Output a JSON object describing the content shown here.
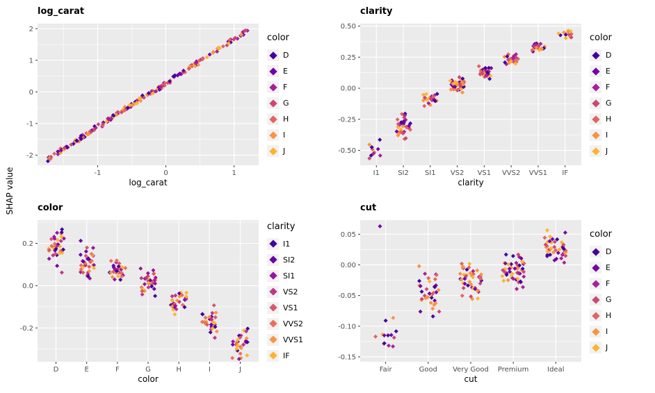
{
  "page": {
    "background": "#FFFFFF",
    "shared_ylabel": "SHAP value"
  },
  "palettes": {
    "color7": [
      "#41049D",
      "#7301A8",
      "#A62098",
      "#CC4778",
      "#E16462",
      "#F89441",
      "#FDB32F"
    ],
    "clarity8": [
      "#41049D",
      "#6A00A8",
      "#97139F",
      "#BD3786",
      "#D8576B",
      "#E97158",
      "#F89540",
      "#FDB32F"
    ]
  },
  "style": {
    "panel_bg": "#EBEBEB",
    "grid_color": "#FFFFFF",
    "tick_label_color": "#4D4D4D",
    "axis_title_color": "#000000",
    "tick_mark_color": "#333333",
    "legend_key_bg": "#F2F2F2"
  },
  "chart_data": [
    {
      "type": "scatter",
      "title": "log_carat",
      "xlabel": "log_carat",
      "ylabel": "SHAP value",
      "x_type": "continuous",
      "x_ticks": [
        -1,
        0,
        1
      ],
      "x_tick_labels": [
        "-1",
        "0",
        "1"
      ],
      "xlim": [
        -1.88,
        1.36
      ],
      "y_ticks": [
        -2,
        -1,
        0,
        1,
        2
      ],
      "y_tick_labels": [
        "-2",
        "-1",
        "0",
        "1",
        "2"
      ],
      "ylim": [
        -2.32,
        2.16
      ],
      "grid": true,
      "legend_position": "right",
      "legend_title": "color",
      "legend_labels": [
        "D",
        "E",
        "F",
        "G",
        "H",
        "I",
        "J"
      ],
      "palette_key": "color7",
      "trend": {
        "kind": "linear",
        "slope": 1.39,
        "intercept": 0.28,
        "x_range": [
          -1.73,
          1.21
        ],
        "noise": 0.035,
        "n": 200
      },
      "seed": 11
    },
    {
      "type": "scatter",
      "title": "clarity",
      "xlabel": "clarity",
      "ylabel": "SHAP value",
      "x_type": "categorical",
      "categories": [
        "I1",
        "SI2",
        "SI1",
        "VS2",
        "VS1",
        "VVS2",
        "VVS1",
        "IF"
      ],
      "y_ticks": [
        -0.5,
        -0.25,
        0,
        0.25,
        0.5
      ],
      "y_tick_labels": [
        "-0.50",
        "-0.25",
        "0.00",
        "0.25",
        "0.50"
      ],
      "ylim": [
        -0.62,
        0.52
      ],
      "grid": true,
      "legend_position": "right",
      "legend_title": "color",
      "legend_labels": [
        "D",
        "E",
        "F",
        "G",
        "H",
        "I",
        "J"
      ],
      "palette_key": "color7",
      "clusters": {
        "centers": [
          -0.5,
          -0.3,
          -0.09,
          0.03,
          0.13,
          0.23,
          0.33,
          0.44
        ],
        "spreads": [
          0.038,
          0.045,
          0.022,
          0.03,
          0.026,
          0.022,
          0.018,
          0.016
        ],
        "counts": [
          11,
          34,
          26,
          40,
          30,
          26,
          24,
          13
        ]
      },
      "seed": 22
    },
    {
      "type": "scatter",
      "title": "color",
      "xlabel": "color",
      "ylabel": "SHAP value",
      "x_type": "categorical",
      "categories": [
        "D",
        "E",
        "F",
        "G",
        "H",
        "I",
        "J"
      ],
      "y_ticks": [
        -0.2,
        0,
        0.2
      ],
      "y_tick_labels": [
        "-0.2",
        "0.0",
        "0.2"
      ],
      "ylim": [
        -0.36,
        0.31
      ],
      "grid": true,
      "legend_position": "right",
      "legend_title": "clarity",
      "legend_labels": [
        "I1",
        "SI2",
        "SI1",
        "VS2",
        "VS1",
        "VVS2",
        "VVS1",
        "IF"
      ],
      "palette_key": "clarity8",
      "clusters": {
        "centers": [
          0.17,
          0.12,
          0.07,
          0.01,
          -0.08,
          -0.17,
          -0.27
        ],
        "spreads": [
          0.045,
          0.04,
          0.028,
          0.032,
          0.028,
          0.032,
          0.032
        ],
        "counts": [
          40,
          36,
          30,
          34,
          26,
          28,
          28
        ]
      },
      "seed": 33
    },
    {
      "type": "scatter",
      "title": "cut",
      "xlabel": "cut",
      "ylabel": "SHAP value",
      "x_type": "categorical",
      "categories": [
        "Fair",
        "Good",
        "Very Good",
        "Premium",
        "Ideal"
      ],
      "y_ticks": [
        -0.15,
        -0.1,
        -0.05,
        0,
        0.05
      ],
      "y_tick_labels": [
        "-0.15",
        "-0.10",
        "-0.05",
        "0.00",
        "0.05"
      ],
      "ylim": [
        -0.158,
        0.073
      ],
      "grid": true,
      "legend_position": "right",
      "legend_title": "color",
      "legend_labels": [
        "D",
        "E",
        "F",
        "G",
        "H",
        "I",
        "J"
      ],
      "palette_key": "color7",
      "clusters": {
        "centers": [
          -0.113,
          -0.042,
          -0.022,
          -0.012,
          0.03
        ],
        "spreads": [
          0.016,
          0.018,
          0.014,
          0.012,
          0.011
        ],
        "counts": [
          13,
          36,
          46,
          48,
          42
        ]
      },
      "outliers": [
        {
          "category_index": 0,
          "y": 0.063,
          "color_index": 1
        }
      ],
      "seed": 44
    }
  ]
}
